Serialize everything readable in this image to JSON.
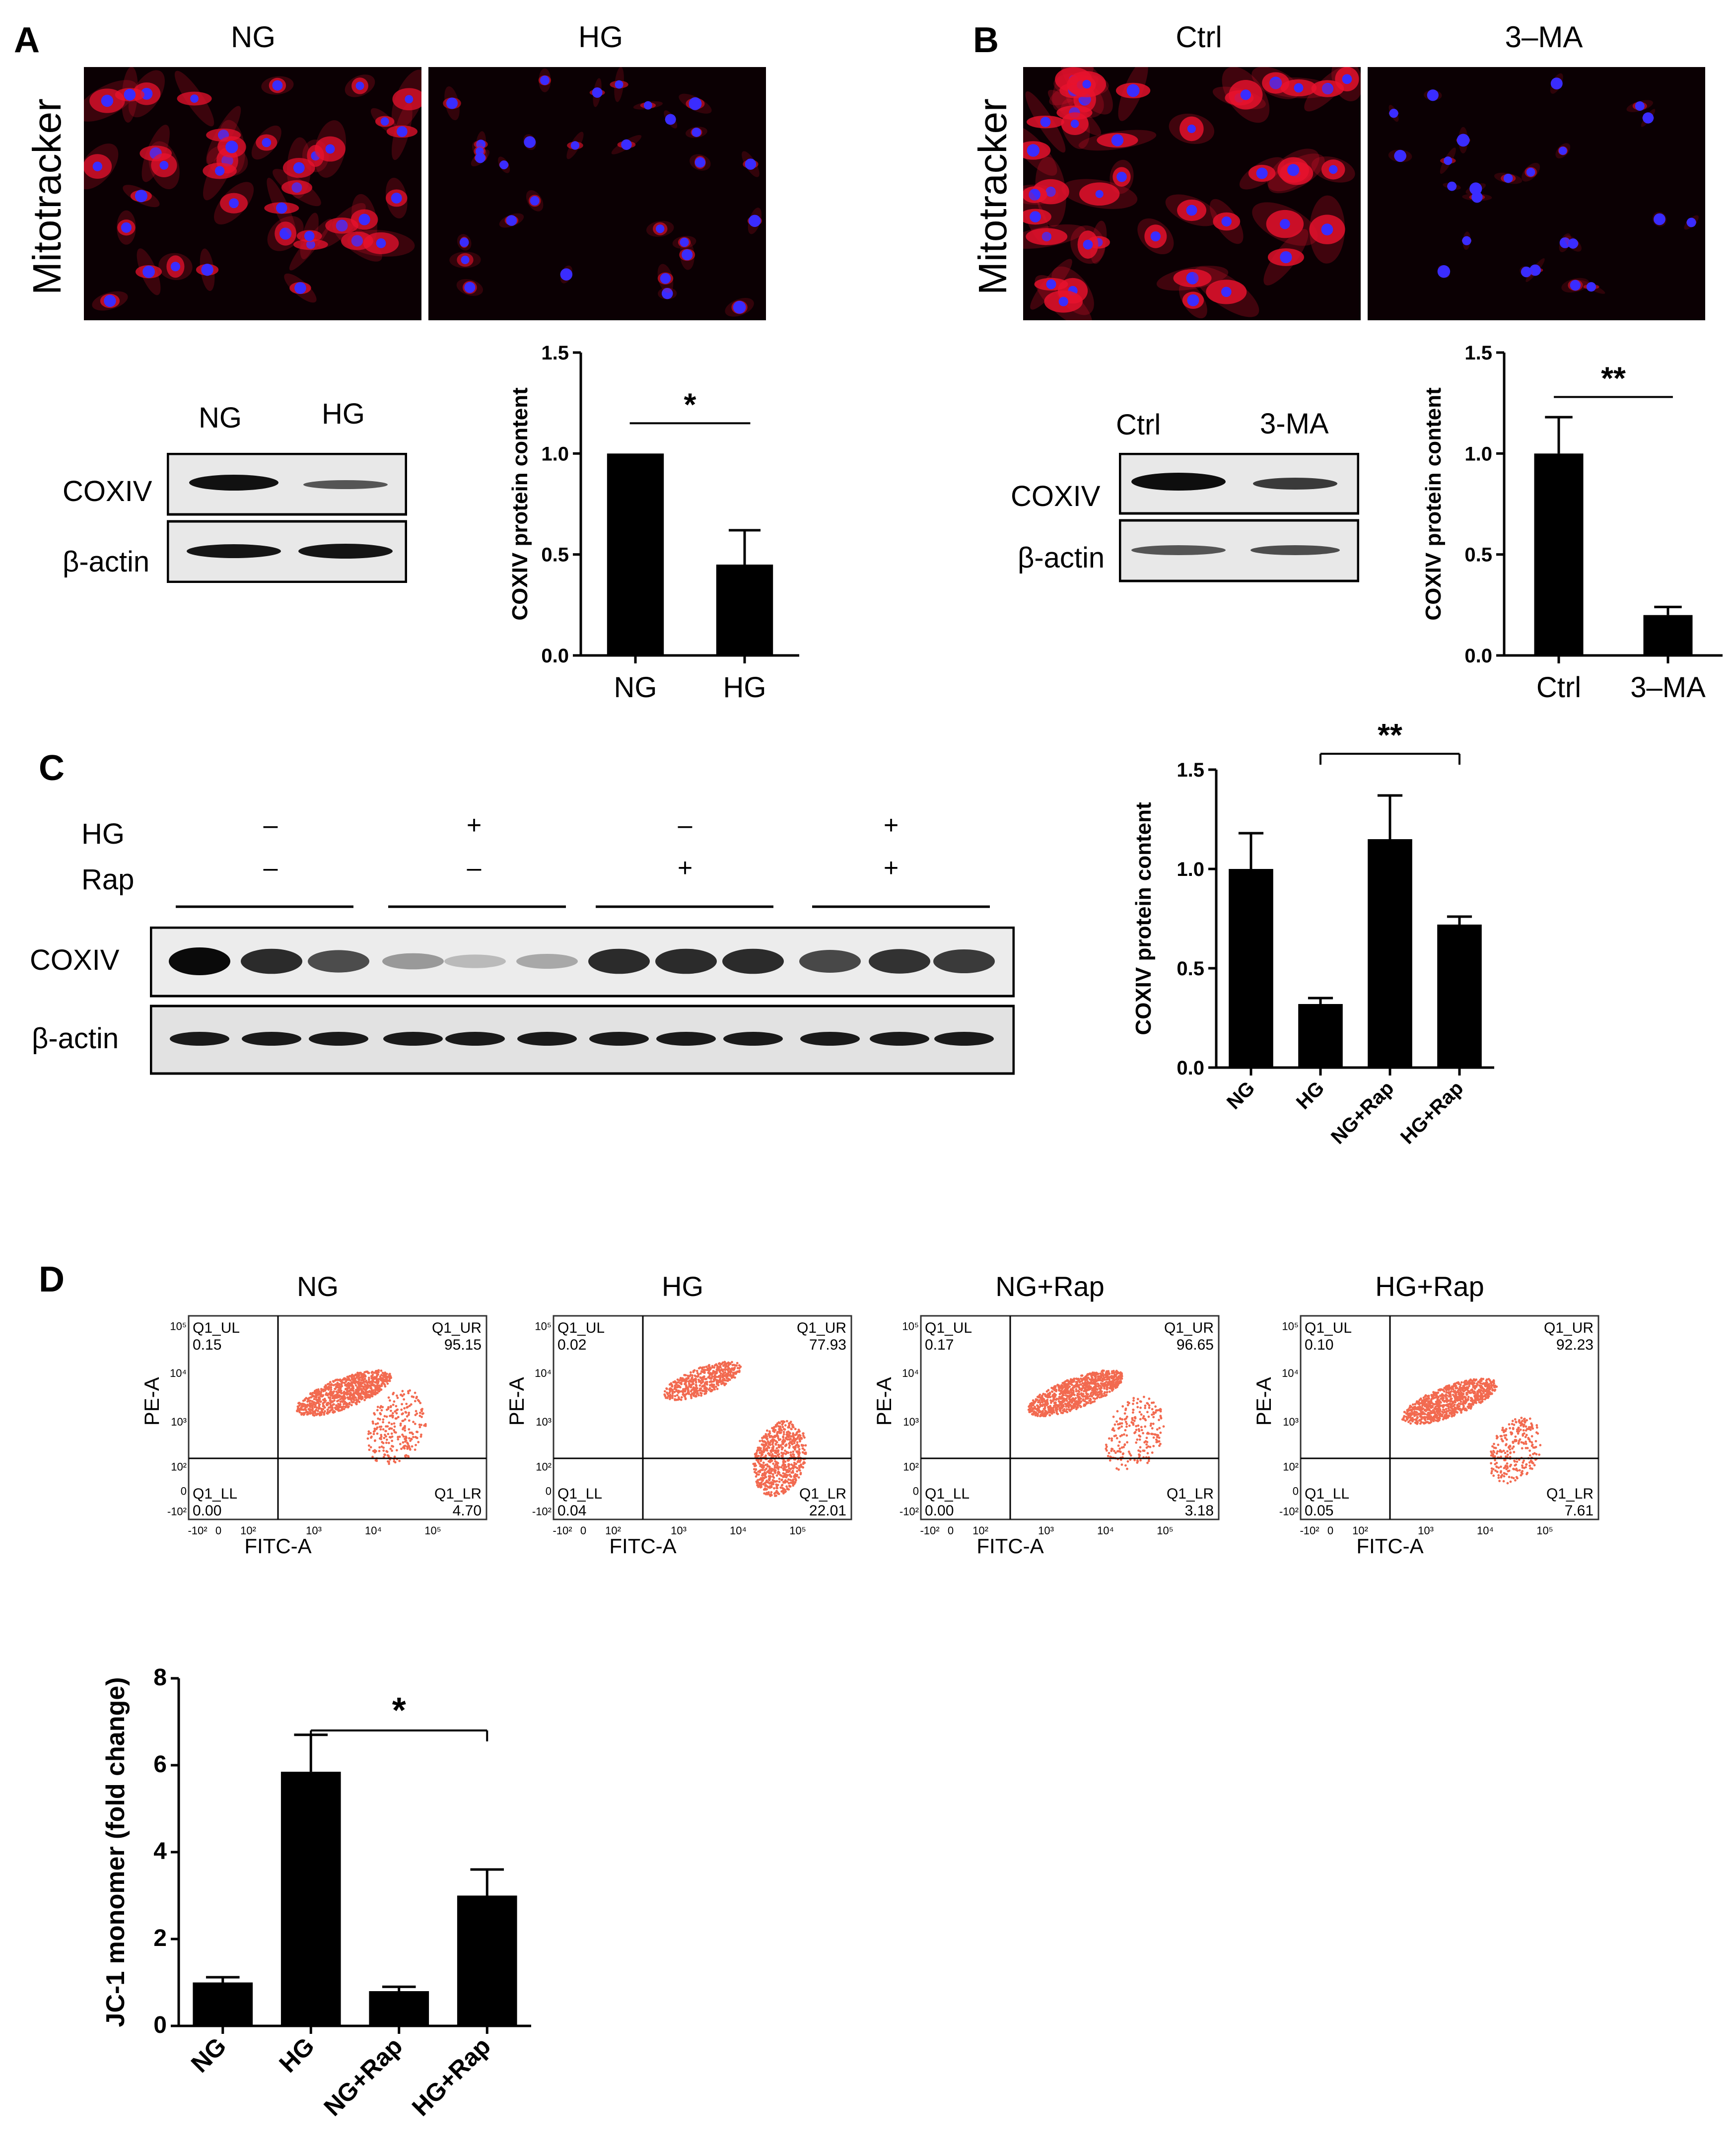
{
  "panels": {
    "A": {
      "label": "A",
      "micro_titles": [
        "NG",
        "HG"
      ],
      "micro_ylabel": "Mitotracker",
      "blot": {
        "lanes": [
          "NG",
          "HG"
        ],
        "rows": [
          "COXIV",
          "β-actin"
        ]
      },
      "chart_data": {
        "type": "bar",
        "categories": [
          "NG",
          "HG"
        ],
        "values": [
          1.0,
          0.45
        ],
        "errors": [
          0.0,
          0.17
        ],
        "ylabel": "COXIV protein content",
        "ylim": [
          0,
          1.5
        ],
        "yticks": [
          "0.0",
          "0.5",
          "1.0",
          "1.5"
        ],
        "significance": "*"
      }
    },
    "B": {
      "label": "B",
      "micro_titles": [
        "Ctrl",
        "3–MA"
      ],
      "micro_ylabel": "Mitotracker",
      "blot": {
        "lanes": [
          "Ctrl",
          "3-MA"
        ],
        "rows": [
          "COXIV",
          "β-actin"
        ]
      },
      "chart_data": {
        "type": "bar",
        "categories": [
          "Ctrl",
          "3–MA"
        ],
        "values": [
          1.0,
          0.2
        ],
        "errors": [
          0.18,
          0.04
        ],
        "ylabel": "COXIV protein content",
        "ylim": [
          0,
          1.5
        ],
        "yticks": [
          "0.0",
          "0.5",
          "1.0",
          "1.5"
        ],
        "significance": "**"
      }
    },
    "C": {
      "label": "C",
      "conditions": [
        {
          "name": "HG",
          "values": [
            "–",
            "+",
            "–",
            "+"
          ]
        },
        {
          "name": "Rap",
          "values": [
            "–",
            "–",
            "+",
            "+"
          ]
        }
      ],
      "blot_rows": [
        "COXIV",
        "β-actin"
      ],
      "chart_data": {
        "type": "bar",
        "categories": [
          "NG",
          "HG",
          "NG+Rap",
          "HG+Rap"
        ],
        "values": [
          1.0,
          0.32,
          1.15,
          0.72
        ],
        "errors": [
          0.18,
          0.03,
          0.22,
          0.04
        ],
        "ylabel": "COXIV protein content",
        "ylim": [
          0,
          1.5
        ],
        "yticks": [
          "0.0",
          "0.5",
          "1.0",
          "1.5"
        ],
        "significance": "**"
      }
    },
    "D": {
      "label": "D",
      "flow": [
        {
          "title": "NG",
          "UL": "0.15",
          "UR": "95.15",
          "LL": "0.00",
          "LR": "4.70"
        },
        {
          "title": "HG",
          "UL": "0.02",
          "UR": "77.93",
          "LL": "0.04",
          "LR": "22.01"
        },
        {
          "title": "NG+Rap",
          "UL": "0.17",
          "UR": "96.65",
          "LL": "0.00",
          "LR": "3.18"
        },
        {
          "title": "HG+Rap",
          "UL": "0.10",
          "UR": "92.23",
          "LL": "0.05",
          "LR": "7.61"
        }
      ],
      "flow_axis": {
        "x": "FITC-A",
        "y": "PE-A"
      },
      "quadrant_names": {
        "UL": "Q1_UL",
        "UR": "Q1_UR",
        "LL": "Q1_LL",
        "LR": "Q1_LR"
      },
      "flow_ticks_y": [
        "10⁵",
        "10⁴",
        "10³",
        "10²",
        "0",
        "-10²"
      ],
      "flow_ticks_x": [
        "-10²",
        "0",
        "10²",
        "10³",
        "10⁴",
        "10⁵"
      ],
      "chart_data": {
        "type": "bar",
        "categories": [
          "NG",
          "HG",
          "NG+Rap",
          "HG+Rap"
        ],
        "values": [
          1.0,
          5.85,
          0.8,
          3.0
        ],
        "errors": [
          0.12,
          0.85,
          0.1,
          0.6
        ],
        "ylabel": "JC-1 monomer (fold change)",
        "ylim": [
          0,
          8
        ],
        "yticks": [
          "0",
          "2",
          "4",
          "6",
          "8"
        ],
        "significance": "*"
      }
    }
  },
  "colors": {
    "mito_red": "#e8122d",
    "nucleus_blue": "#3a2cff",
    "flow_orange": "#f26a50"
  }
}
